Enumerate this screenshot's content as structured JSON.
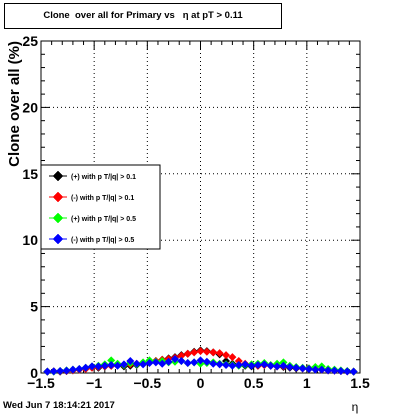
{
  "title": "Clone  over all for Primary vs   η at pT > 0.11",
  "footer": "Wed Jun  7 18:14:21 2017",
  "chart_data": {
    "type": "scatter",
    "xlabel": "η",
    "ylabel": "Clone  over all (%)",
    "xlim": [
      -1.5,
      1.5
    ],
    "ylim": [
      0,
      25
    ],
    "xticks": [
      -1.5,
      -1,
      -0.5,
      0,
      0.5,
      1,
      1.5
    ],
    "xticklabels": [
      "−1.5",
      "−1",
      "−0.5",
      "0",
      "0.5",
      "1",
      "1.5"
    ],
    "yticks": [
      0,
      5,
      10,
      15,
      20,
      25
    ],
    "yticklabels": [
      "0",
      "5",
      "10",
      "15",
      "20",
      "25"
    ],
    "grid": true,
    "legend_position": "left-middle",
    "series": [
      {
        "name": "(+) with p T/|q| > 0.1",
        "color": "#000000",
        "points": [
          [
            -1.44,
            0.1
          ],
          [
            -1.38,
            0.12
          ],
          [
            -1.32,
            0.1
          ],
          [
            -1.26,
            0.15
          ],
          [
            -1.2,
            0.2
          ],
          [
            -1.14,
            0.28
          ],
          [
            -1.08,
            0.35
          ],
          [
            -1.02,
            0.45
          ],
          [
            -0.96,
            0.4
          ],
          [
            -0.9,
            0.5
          ],
          [
            -0.84,
            0.55
          ],
          [
            -0.78,
            0.6
          ],
          [
            -0.72,
            0.5
          ],
          [
            -0.66,
            0.55
          ],
          [
            -0.6,
            0.6
          ],
          [
            -0.54,
            0.7
          ],
          [
            -0.48,
            0.8
          ],
          [
            -0.42,
            0.9
          ],
          [
            -0.36,
            1.0
          ],
          [
            -0.3,
            1.1
          ],
          [
            -0.24,
            1.2
          ],
          [
            -0.18,
            1.35
          ],
          [
            -0.12,
            1.45
          ],
          [
            -0.06,
            1.6
          ],
          [
            0.0,
            1.7
          ],
          [
            0.06,
            1.65
          ],
          [
            0.12,
            1.55
          ],
          [
            0.18,
            1.4
          ],
          [
            0.24,
            0.9
          ],
          [
            0.3,
            0.7
          ],
          [
            0.36,
            0.6
          ],
          [
            0.42,
            0.55
          ],
          [
            0.48,
            0.5
          ],
          [
            0.54,
            0.55
          ],
          [
            0.6,
            0.6
          ],
          [
            0.66,
            0.55
          ],
          [
            0.72,
            0.5
          ],
          [
            0.78,
            0.45
          ],
          [
            0.84,
            0.4
          ],
          [
            0.9,
            0.35
          ],
          [
            0.96,
            0.35
          ],
          [
            1.02,
            0.3
          ],
          [
            1.08,
            0.3
          ],
          [
            1.14,
            0.25
          ],
          [
            1.2,
            0.2
          ],
          [
            1.26,
            0.18
          ],
          [
            1.32,
            0.15
          ],
          [
            1.38,
            0.12
          ],
          [
            1.44,
            0.1
          ]
        ]
      },
      {
        "name": "(-) with p T/|q| > 0.1",
        "color": "#ff0000",
        "points": [
          [
            -1.44,
            0.1
          ],
          [
            -1.38,
            0.12
          ],
          [
            -1.32,
            0.12
          ],
          [
            -1.26,
            0.15
          ],
          [
            -1.2,
            0.2
          ],
          [
            -1.14,
            0.25
          ],
          [
            -1.08,
            0.3
          ],
          [
            -1.02,
            0.4
          ],
          [
            -0.96,
            0.45
          ],
          [
            -0.9,
            0.5
          ],
          [
            -0.84,
            0.55
          ],
          [
            -0.78,
            0.6
          ],
          [
            -0.72,
            0.6
          ],
          [
            -0.66,
            0.65
          ],
          [
            -0.6,
            0.7
          ],
          [
            -0.54,
            0.75
          ],
          [
            -0.48,
            0.8
          ],
          [
            -0.42,
            0.9
          ],
          [
            -0.36,
            1.0
          ],
          [
            -0.3,
            1.05
          ],
          [
            -0.24,
            1.15
          ],
          [
            -0.18,
            1.3
          ],
          [
            -0.12,
            1.45
          ],
          [
            -0.06,
            1.55
          ],
          [
            0.0,
            1.65
          ],
          [
            0.06,
            1.6
          ],
          [
            0.12,
            1.55
          ],
          [
            0.18,
            1.5
          ],
          [
            0.24,
            1.35
          ],
          [
            0.3,
            1.2
          ],
          [
            0.36,
            0.9
          ],
          [
            0.42,
            0.7
          ],
          [
            0.48,
            0.6
          ],
          [
            0.54,
            0.55
          ],
          [
            0.6,
            0.6
          ],
          [
            0.66,
            0.55
          ],
          [
            0.72,
            0.5
          ],
          [
            0.78,
            0.5
          ],
          [
            0.84,
            0.45
          ],
          [
            0.9,
            0.4
          ],
          [
            0.96,
            0.35
          ],
          [
            1.02,
            0.35
          ],
          [
            1.08,
            0.3
          ],
          [
            1.14,
            0.25
          ],
          [
            1.2,
            0.2
          ],
          [
            1.26,
            0.18
          ],
          [
            1.32,
            0.15
          ],
          [
            1.38,
            0.12
          ],
          [
            1.44,
            0.1
          ]
        ]
      },
      {
        "name": "(+) with p T/|q| > 0.5",
        "color": "#00ff00",
        "points": [
          [
            -1.44,
            0.1
          ],
          [
            -1.38,
            0.1
          ],
          [
            -1.32,
            0.15
          ],
          [
            -1.26,
            0.2
          ],
          [
            -1.2,
            0.25
          ],
          [
            -1.14,
            0.3
          ],
          [
            -1.08,
            0.4
          ],
          [
            -1.02,
            0.5
          ],
          [
            -0.96,
            0.55
          ],
          [
            -0.9,
            0.65
          ],
          [
            -0.84,
            0.95
          ],
          [
            -0.78,
            0.7
          ],
          [
            -0.72,
            0.6
          ],
          [
            -0.66,
            0.75
          ],
          [
            -0.6,
            0.65
          ],
          [
            -0.54,
            0.8
          ],
          [
            -0.48,
            0.95
          ],
          [
            -0.42,
            0.85
          ],
          [
            -0.36,
            0.9
          ],
          [
            -0.3,
            0.8
          ],
          [
            -0.24,
            0.85
          ],
          [
            -0.18,
            0.9
          ],
          [
            -0.12,
            0.75
          ],
          [
            -0.06,
            0.8
          ],
          [
            0.0,
            0.7
          ],
          [
            0.06,
            0.75
          ],
          [
            0.12,
            0.8
          ],
          [
            0.18,
            0.7
          ],
          [
            0.24,
            0.65
          ],
          [
            0.3,
            0.6
          ],
          [
            0.36,
            0.55
          ],
          [
            0.42,
            0.6
          ],
          [
            0.48,
            0.65
          ],
          [
            0.54,
            0.7
          ],
          [
            0.6,
            0.75
          ],
          [
            0.66,
            0.6
          ],
          [
            0.72,
            0.7
          ],
          [
            0.78,
            0.8
          ],
          [
            0.84,
            0.55
          ],
          [
            0.9,
            0.45
          ],
          [
            0.96,
            0.4
          ],
          [
            1.02,
            0.35
          ],
          [
            1.08,
            0.45
          ],
          [
            1.14,
            0.5
          ],
          [
            1.2,
            0.3
          ],
          [
            1.26,
            0.25
          ],
          [
            1.32,
            0.2
          ],
          [
            1.38,
            0.15
          ],
          [
            1.44,
            0.1
          ]
        ]
      },
      {
        "name": "(-) with p T/|q| > 0.5",
        "color": "#0000ff",
        "points": [
          [
            -1.44,
            0.1
          ],
          [
            -1.38,
            0.12
          ],
          [
            -1.32,
            0.15
          ],
          [
            -1.26,
            0.18
          ],
          [
            -1.2,
            0.25
          ],
          [
            -1.14,
            0.3
          ],
          [
            -1.08,
            0.4
          ],
          [
            -1.02,
            0.5
          ],
          [
            -0.96,
            0.5
          ],
          [
            -0.9,
            0.55
          ],
          [
            -0.84,
            0.6
          ],
          [
            -0.78,
            0.55
          ],
          [
            -0.72,
            0.65
          ],
          [
            -0.66,
            0.9
          ],
          [
            -0.6,
            0.7
          ],
          [
            -0.54,
            0.65
          ],
          [
            -0.48,
            0.75
          ],
          [
            -0.42,
            0.8
          ],
          [
            -0.36,
            0.7
          ],
          [
            -0.3,
            0.85
          ],
          [
            -0.24,
            1.05
          ],
          [
            -0.18,
            0.9
          ],
          [
            -0.12,
            0.75
          ],
          [
            -0.06,
            0.8
          ],
          [
            0.0,
            0.95
          ],
          [
            0.06,
            0.85
          ],
          [
            0.12,
            0.7
          ],
          [
            0.18,
            0.65
          ],
          [
            0.24,
            0.6
          ],
          [
            0.3,
            0.55
          ],
          [
            0.36,
            0.6
          ],
          [
            0.42,
            0.65
          ],
          [
            0.48,
            0.55
          ],
          [
            0.54,
            0.6
          ],
          [
            0.6,
            0.65
          ],
          [
            0.66,
            0.55
          ],
          [
            0.72,
            0.5
          ],
          [
            0.78,
            0.55
          ],
          [
            0.84,
            0.45
          ],
          [
            0.9,
            0.4
          ],
          [
            0.96,
            0.35
          ],
          [
            1.02,
            0.3
          ],
          [
            1.08,
            0.25
          ],
          [
            1.14,
            0.25
          ],
          [
            1.2,
            0.2
          ],
          [
            1.26,
            0.18
          ],
          [
            1.32,
            0.15
          ],
          [
            1.38,
            0.12
          ],
          [
            1.44,
            0.1
          ]
        ]
      }
    ]
  }
}
